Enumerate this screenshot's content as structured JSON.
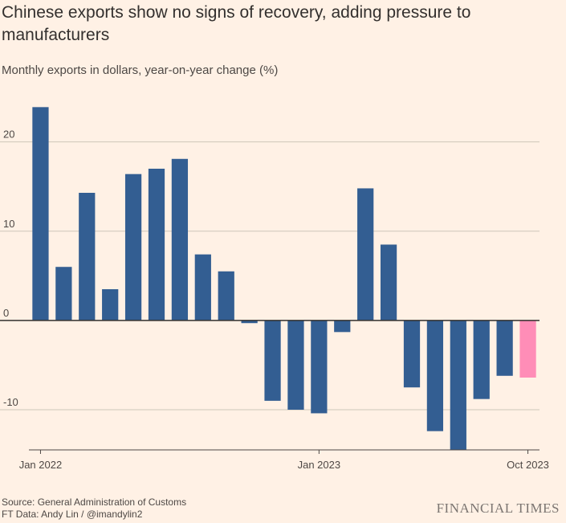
{
  "title": "Chinese exports show no signs of recovery, adding pressure to manufacturers",
  "subtitle": "Monthly exports in dollars, year-on-year change (%)",
  "footer": {
    "source": "Source: General Administration of Customs",
    "credit": "FT Data: Andy Lin / @imandylin2"
  },
  "logo_text": "FINANCIAL TIMES",
  "colors": {
    "bar": "#335e92",
    "highlight": "#ff8db7",
    "grid": "#cec6b9",
    "zero": "#33302e",
    "background": "#fff1e5"
  },
  "chart_data": {
    "type": "bar",
    "title": "Chinese exports show no signs of recovery, adding pressure to manufacturers",
    "ylabel": "Monthly exports in dollars, year-on-year change (%)",
    "categories": [
      "Jan 2022",
      "Feb 2022",
      "Mar 2022",
      "Apr 2022",
      "May 2022",
      "Jun 2022",
      "Jul 2022",
      "Aug 2022",
      "Sep 2022",
      "Oct 2022",
      "Nov 2022",
      "Dec 2022",
      "Jan 2023",
      "Feb 2023",
      "Mar 2023",
      "Apr 2023",
      "May 2023",
      "Jun 2023",
      "Jul 2023",
      "Aug 2023",
      "Sep 2023",
      "Oct 2023"
    ],
    "values": [
      23.9,
      6.0,
      14.3,
      3.5,
      16.4,
      17.0,
      18.1,
      7.4,
      5.5,
      -0.3,
      -9.0,
      -10.0,
      -10.4,
      -1.3,
      14.8,
      8.5,
      -7.5,
      -12.4,
      -14.5,
      -8.8,
      -6.2,
      -6.4
    ],
    "highlight_index": 21,
    "ylim": [
      -14.5,
      26
    ],
    "yticks": [
      -10,
      0,
      10,
      20
    ],
    "ytick_labels": [
      "-10",
      "0",
      "10",
      "20"
    ],
    "xtick_labels": [
      {
        "index": 0,
        "label": "Jan 2022"
      },
      {
        "index": 12,
        "label": "Jan 2023"
      },
      {
        "index": 21,
        "label": "Oct 2023"
      }
    ],
    "grid": true
  }
}
